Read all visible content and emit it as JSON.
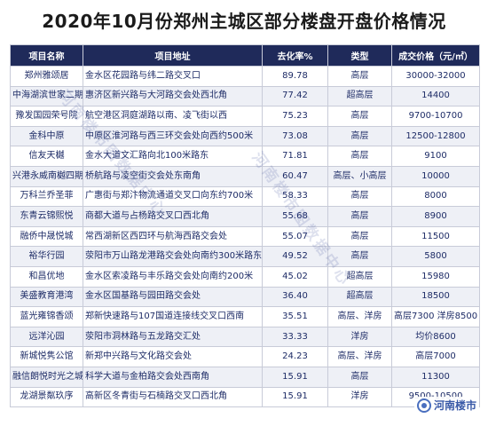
{
  "title": "2020年10月份郑州主城区部分楼盘开盘价格情况",
  "table": {
    "headers": [
      "项目名称",
      "项目地址",
      "去化率%",
      "类型",
      "成交价格（元/㎡）"
    ],
    "rows": [
      [
        "郑州雅颂居",
        "金水区花园路与纬二路交叉口",
        "89.78",
        "高层",
        "30000-32000"
      ],
      [
        "中海湖滨世家二期",
        "惠济区新兴路与大河路交会处西北角",
        "77.42",
        "超高层",
        "14400"
      ],
      [
        "豫发国园荣号院",
        "航空港区洞庭湖路以南、凌飞街以西",
        "75.23",
        "高层",
        "9700-10700"
      ],
      [
        "金科中原",
        "中原区淮河路与西三环交会处向西约500米",
        "73.08",
        "高层",
        "12500-12800"
      ],
      [
        "信友天樾",
        "金水大道文汇路向北100米路东",
        "71.81",
        "高层",
        "9100"
      ],
      [
        "兴港永威南樾四期",
        "桥航路与凌空街交会处东南角",
        "60.47",
        "高层、小高层",
        "10000"
      ],
      [
        "万科兰乔圣菲",
        "广惠街与郑汴物流通道交叉口向东约700米",
        "58.33",
        "高层",
        "8000"
      ],
      [
        "东青云锦熙悦",
        "商都大道与占杨路交叉口西北角",
        "55.68",
        "高层",
        "8900"
      ],
      [
        "融侨中晟悦城",
        "常西湖新区西四环与航海西路交会处",
        "55.07",
        "高层",
        "11500"
      ],
      [
        "裕华行园",
        "荥阳市万山路龙港路交会处向南约300米路东",
        "49.52",
        "高层",
        "5800"
      ],
      [
        "和昌优地",
        "金水区索凌路与丰乐路交会处向南约200米",
        "45.02",
        "超高层",
        "15980"
      ],
      [
        "美盛教育港湾",
        "金水区国基路与园田路交会处",
        "36.40",
        "超高层",
        "18500"
      ],
      [
        "蓝光雍锦香颂",
        "郑新快速路与107国道连接线交叉口西南",
        "35.51",
        "高层、洋房",
        "高层7300 洋房8500"
      ],
      [
        "远洋沁园",
        "荥阳市洞林路与五龙路交汇处",
        "33.33",
        "洋房",
        "均价8600"
      ],
      [
        "新城悦隽公馆",
        "新郑中兴路与文化路交会处",
        "24.23",
        "高层、洋房",
        "高层7000"
      ],
      [
        "融信朗悦时光之城",
        "科学大道与金柏路交会处西南角",
        "15.91",
        "高层",
        "11300"
      ],
      [
        "龙湖景粼玖序",
        "高新区冬青街与石楠路交叉口西北角",
        "15.91",
        "洋房",
        "9500-10500"
      ]
    ]
  },
  "watermarks": [
    "河南楼市图数据中心",
    "河南楼市图数据中心"
  ],
  "logo": {
    "icon": "logo-icon",
    "text": "河南楼市"
  }
}
